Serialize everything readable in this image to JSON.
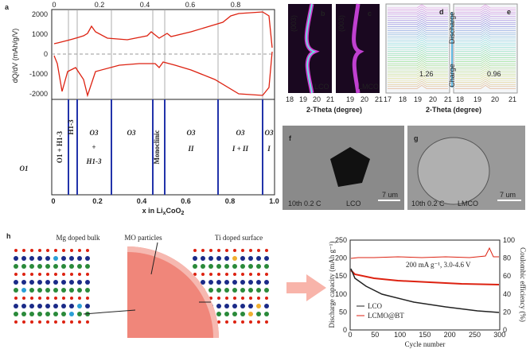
{
  "panel_a": {
    "label": "a",
    "ylabel": "dQ/dV (mAh/g/V)",
    "yticks": [
      "2000",
      "1000",
      "0",
      "-1000",
      "-2000"
    ],
    "top_xticks": [
      "0",
      "0.2",
      "0.4",
      "0.6",
      "0.8"
    ],
    "bottom_xticks": [
      "0",
      "0.2",
      "0.4",
      "0.6",
      "0.8",
      "1.0"
    ],
    "xlabel": [
      "x in Li",
      "x",
      "CoO",
      "2"
    ],
    "phases": {
      "o1": "O1",
      "o1_h13": "O1 + H1-3",
      "h13": "H1-3",
      "o3_h13": [
        "O3",
        "+",
        "H1-3"
      ],
      "o3": "O3",
      "monoclinic": "Monoclinic",
      "o3_ii": [
        "O3",
        "II"
      ],
      "o3_i_ii": [
        "O3",
        "I + II"
      ],
      "o3_i": [
        "O3",
        "I"
      ]
    }
  },
  "panel_b": {
    "label": "b",
    "peak": "(003)",
    "sample": "LCO",
    "xticks": [
      "18",
      "19",
      "20",
      "21"
    ]
  },
  "panel_c": {
    "label": "c",
    "peak": "(003)",
    "sample": "LMCO",
    "xticks": [
      "19",
      "20",
      "21"
    ]
  },
  "xlabel_bc": "2-Theta (degree)",
  "panel_d": {
    "label": "d",
    "discharge": "Discharge",
    "charge": "Charge",
    "shift": "1.26",
    "xticks": [
      "17",
      "18",
      "19",
      "20",
      "21"
    ]
  },
  "panel_e": {
    "label": "e",
    "shift": "0.96",
    "xticks": [
      "18",
      "19",
      "20",
      "21"
    ]
  },
  "xlabel_de": "2-Theta (degree)",
  "panel_f": {
    "label": "f",
    "condition": "10th 0.2 C",
    "sample": "LCO",
    "scale": "7 um"
  },
  "panel_g": {
    "label": "g",
    "condition": "10th 0.2 C",
    "sample": "LMCO",
    "scale": "7 um"
  },
  "panel_h": {
    "label": "h",
    "bulk": "Mg doped bulk",
    "particles": "MO particles",
    "surface": "Ti doped surface",
    "chart": {
      "ylabel": "Discharge capacity (mAh g⁻¹)",
      "y2label": "Coulombic efficiency (%)",
      "xlabel": "Cycle number",
      "annotation": "200 mA g⁻¹, 3.0-4.6 V",
      "yticks": [
        "0",
        "50",
        "100",
        "150",
        "200",
        "250"
      ],
      "y2ticks": [
        "0",
        "20",
        "40",
        "60",
        "80",
        "100"
      ],
      "xticks": [
        "0",
        "50",
        "100",
        "150",
        "200",
        "250",
        "300"
      ],
      "legend": [
        "LCO",
        "LCMO@BT"
      ]
    }
  }
}
